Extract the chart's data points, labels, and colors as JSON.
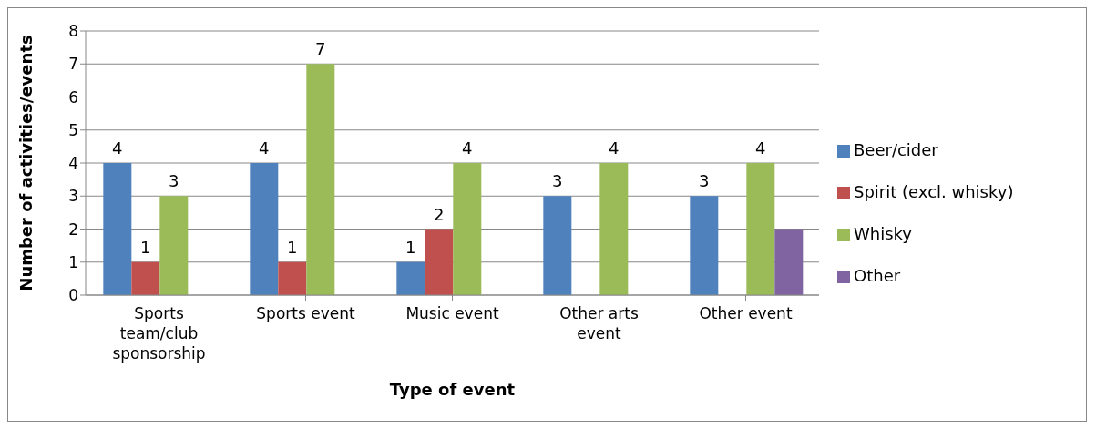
{
  "chart_data": {
    "type": "bar",
    "xlabel": "Type of event",
    "ylabel": "Number of activities/events",
    "categories": [
      "Sports team/club sponsorship",
      "Sports event",
      "Music event",
      "Other arts event",
      "Other event"
    ],
    "series": [
      {
        "name": "Beer/cider",
        "color": "#4f81bd",
        "values": [
          4,
          4,
          1,
          3,
          3
        ],
        "value_labels": [
          "4",
          "4",
          "1",
          "3",
          "3"
        ]
      },
      {
        "name": "Spirit (excl. whisky)",
        "color": "#c0504d",
        "values": [
          1,
          1,
          2,
          0,
          0
        ],
        "value_labels": [
          "1",
          "1",
          "2",
          null,
          null
        ]
      },
      {
        "name": "Whisky",
        "color": "#9bbb59",
        "values": [
          3,
          7,
          4,
          4,
          4
        ],
        "value_labels": [
          "3",
          "7",
          "4",
          "4",
          "4"
        ]
      },
      {
        "name": "Other",
        "color": "#8064a2",
        "values": [
          0,
          0,
          0,
          0,
          2
        ],
        "value_labels": [
          null,
          null,
          null,
          null,
          null
        ]
      }
    ],
    "ylim": [
      0,
      8
    ],
    "yticks": [
      0,
      1,
      2,
      3,
      4,
      5,
      6,
      7,
      8
    ],
    "grid": "y",
    "legend": "right"
  }
}
